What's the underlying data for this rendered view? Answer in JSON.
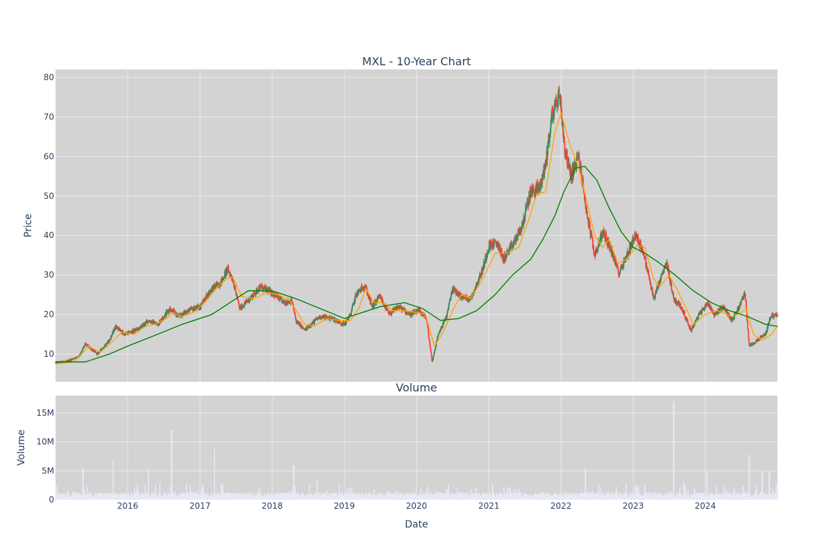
{
  "chart_data": [
    {
      "type": "candlestick",
      "title": "MXL - 10-Year Chart",
      "ylabel": "Price",
      "xlabel": "",
      "ylim": [
        3,
        82
      ],
      "xlim": [
        "2015-01-01",
        "2024-12-31"
      ],
      "yticks": [
        10,
        20,
        30,
        40,
        50,
        60,
        70,
        80
      ],
      "grid": true,
      "colors": {
        "increasing": "#2e8b57",
        "decreasing": "#ff4136",
        "ma_short": "#ffa500",
        "ma_long": "#008000",
        "plot_bg": "#d3d3d3"
      },
      "price_path": [
        [
          "2015-01-01",
          7.8
        ],
        [
          "2015-03-01",
          8.2
        ],
        [
          "2015-05-01",
          9.5
        ],
        [
          "2015-06-01",
          12.5
        ],
        [
          "2015-08-01",
          10.0
        ],
        [
          "2015-10-01",
          13.5
        ],
        [
          "2015-11-01",
          17.0
        ],
        [
          "2015-12-15",
          15.0
        ],
        [
          "2016-01-15",
          15.5
        ],
        [
          "2016-03-01",
          16.5
        ],
        [
          "2016-04-15",
          18.5
        ],
        [
          "2016-06-01",
          17.5
        ],
        [
          "2016-07-01",
          19.5
        ],
        [
          "2016-08-01",
          21.5
        ],
        [
          "2016-09-15",
          19.5
        ],
        [
          "2016-11-01",
          21.0
        ],
        [
          "2017-01-01",
          22.0
        ],
        [
          "2017-03-01",
          26.5
        ],
        [
          "2017-04-15",
          28.0
        ],
        [
          "2017-05-20",
          31.5
        ],
        [
          "2017-06-15",
          29.0
        ],
        [
          "2017-07-20",
          21.5
        ],
        [
          "2017-09-01",
          23.5
        ],
        [
          "2017-11-01",
          27.0
        ],
        [
          "2018-01-01",
          25.5
        ],
        [
          "2018-03-01",
          23.0
        ],
        [
          "2018-04-10",
          23.5
        ],
        [
          "2018-05-01",
          18.5
        ],
        [
          "2018-06-15",
          16.0
        ],
        [
          "2018-07-15",
          17.5
        ],
        [
          "2018-09-01",
          19.5
        ],
        [
          "2018-11-01",
          19.0
        ],
        [
          "2019-01-01",
          17.5
        ],
        [
          "2019-02-01",
          20.0
        ],
        [
          "2019-03-01",
          25.0
        ],
        [
          "2019-04-15",
          27.5
        ],
        [
          "2019-05-20",
          22.0
        ],
        [
          "2019-07-01",
          24.5
        ],
        [
          "2019-08-15",
          20.0
        ],
        [
          "2019-10-01",
          22.0
        ],
        [
          "2019-12-01",
          20.0
        ],
        [
          "2020-01-15",
          21.0
        ],
        [
          "2020-02-20",
          19.0
        ],
        [
          "2020-03-20",
          8.0
        ],
        [
          "2020-04-20",
          15.0
        ],
        [
          "2020-06-01",
          19.5
        ],
        [
          "2020-07-01",
          26.5
        ],
        [
          "2020-08-15",
          24.5
        ],
        [
          "2020-10-01",
          24.0
        ],
        [
          "2020-12-01",
          31.5
        ],
        [
          "2021-01-01",
          37.5
        ],
        [
          "2021-02-15",
          38.0
        ],
        [
          "2021-03-15",
          34.0
        ],
        [
          "2021-05-01",
          37.5
        ],
        [
          "2021-06-15",
          42.0
        ],
        [
          "2021-08-01",
          51.0
        ],
        [
          "2021-09-15",
          52.0
        ],
        [
          "2021-10-15",
          58.0
        ],
        [
          "2021-11-15",
          70.0
        ],
        [
          "2021-12-25",
          76.0
        ],
        [
          "2022-01-20",
          62.0
        ],
        [
          "2022-02-20",
          55.0
        ],
        [
          "2022-04-01",
          60.0
        ],
        [
          "2022-05-10",
          46.0
        ],
        [
          "2022-06-20",
          35.0
        ],
        [
          "2022-08-01",
          41.0
        ],
        [
          "2022-09-15",
          36.0
        ],
        [
          "2022-10-20",
          30.5
        ],
        [
          "2022-12-01",
          35.0
        ],
        [
          "2023-01-10",
          40.0
        ],
        [
          "2023-02-15",
          37.0
        ],
        [
          "2023-03-15",
          31.0
        ],
        [
          "2023-04-15",
          24.0
        ],
        [
          "2023-05-20",
          29.0
        ],
        [
          "2023-06-20",
          33.0
        ],
        [
          "2023-07-25",
          24.0
        ],
        [
          "2023-09-01",
          22.0
        ],
        [
          "2023-10-20",
          16.0
        ],
        [
          "2023-12-01",
          20.0
        ],
        [
          "2024-01-15",
          23.0
        ],
        [
          "2024-02-15",
          20.0
        ],
        [
          "2024-04-01",
          22.0
        ],
        [
          "2024-05-15",
          18.5
        ],
        [
          "2024-06-20",
          22.0
        ],
        [
          "2024-07-20",
          25.5
        ],
        [
          "2024-08-10",
          12.0
        ],
        [
          "2024-09-20",
          13.5
        ],
        [
          "2024-11-01",
          15.0
        ],
        [
          "2024-11-25",
          19.5
        ],
        [
          "2024-12-31",
          20.0
        ]
      ],
      "series": [
        {
          "values": [
            [
              "2015-01-01",
              7.5
            ],
            [
              "2015-04-01",
              8.0
            ],
            [
              "2015-05-15",
              10.0
            ],
            [
              "2015-06-15",
              12.0
            ],
            [
              "2015-08-15",
              10.5
            ],
            [
              "2015-10-01",
              12.5
            ],
            [
              "2015-12-01",
              15.5
            ],
            [
              "2016-02-01",
              15.0
            ],
            [
              "2016-04-01",
              17.0
            ],
            [
              "2016-05-15",
              17.5
            ],
            [
              "2016-07-15",
              19.0
            ],
            [
              "2016-08-15",
              20.5
            ],
            [
              "2016-10-01",
              19.5
            ],
            [
              "2016-12-01",
              20.5
            ],
            [
              "2017-02-01",
              23.5
            ],
            [
              "2017-04-01",
              27.0
            ],
            [
              "2017-05-15",
              29.0
            ],
            [
              "2017-06-15",
              29.5
            ],
            [
              "2017-08-01",
              24.5
            ],
            [
              "2017-10-01",
              24.0
            ],
            [
              "2017-12-01",
              25.5
            ],
            [
              "2018-02-01",
              25.0
            ],
            [
              "2018-04-01",
              23.5
            ],
            [
              "2018-06-15",
              17.5
            ],
            [
              "2018-08-01",
              17.0
            ],
            [
              "2018-10-01",
              19.0
            ],
            [
              "2018-12-01",
              18.5
            ],
            [
              "2019-02-01",
              18.5
            ],
            [
              "2019-03-15",
              21.5
            ],
            [
              "2019-04-20",
              26.5
            ],
            [
              "2019-06-01",
              23.0
            ],
            [
              "2019-07-15",
              23.0
            ],
            [
              "2019-09-01",
              21.0
            ],
            [
              "2019-11-01",
              21.0
            ],
            [
              "2020-01-01",
              20.5
            ],
            [
              "2020-02-15",
              20.0
            ],
            [
              "2020-04-01",
              12.0
            ],
            [
              "2020-05-15",
              15.5
            ],
            [
              "2020-07-01",
              21.0
            ],
            [
              "2020-08-15",
              25.0
            ],
            [
              "2020-10-01",
              24.0
            ],
            [
              "2020-12-01",
              29.0
            ],
            [
              "2021-02-01",
              35.5
            ],
            [
              "2021-04-01",
              35.5
            ],
            [
              "2021-06-01",
              37.0
            ],
            [
              "2021-07-15",
              43.0
            ],
            [
              "2021-09-01",
              50.5
            ],
            [
              "2021-10-15",
              51.0
            ],
            [
              "2021-12-01",
              66.0
            ],
            [
              "2022-01-01",
              71.0
            ],
            [
              "2022-02-15",
              63.0
            ],
            [
              "2022-04-01",
              57.0
            ],
            [
              "2022-05-15",
              48.0
            ],
            [
              "2022-06-20",
              40.0
            ],
            [
              "2022-08-01",
              37.0
            ],
            [
              "2022-09-01",
              39.0
            ],
            [
              "2022-10-15",
              33.0
            ],
            [
              "2022-12-01",
              34.0
            ],
            [
              "2023-01-20",
              37.5
            ],
            [
              "2023-03-01",
              37.0
            ],
            [
              "2023-04-15",
              29.0
            ],
            [
              "2023-05-15",
              27.0
            ],
            [
              "2023-07-01",
              30.0
            ],
            [
              "2023-08-15",
              26.0
            ],
            [
              "2023-10-01",
              21.0
            ],
            [
              "2023-11-01",
              17.5
            ],
            [
              "2024-01-01",
              20.0
            ],
            [
              "2024-03-01",
              21.0
            ],
            [
              "2024-05-15",
              19.5
            ],
            [
              "2024-07-01",
              20.5
            ],
            [
              "2024-07-25",
              21.5
            ],
            [
              "2024-09-01",
              15.0
            ],
            [
              "2024-10-15",
              13.5
            ],
            [
              "2024-12-01",
              15.0
            ],
            [
              "2024-12-31",
              17.0
            ]
          ]
        },
        {
          "values": [
            [
              "2015-01-01",
              8.0
            ],
            [
              "2015-06-01",
              8.0
            ],
            [
              "2015-10-01",
              10.0
            ],
            [
              "2016-01-01",
              12.0
            ],
            [
              "2016-06-01",
              15.0
            ],
            [
              "2016-10-01",
              17.5
            ],
            [
              "2017-03-01",
              20.0
            ],
            [
              "2017-06-01",
              23.0
            ],
            [
              "2017-09-01",
              26.0
            ],
            [
              "2018-01-01",
              26.0
            ],
            [
              "2018-05-01",
              24.0
            ],
            [
              "2018-09-01",
              21.5
            ],
            [
              "2019-01-01",
              19.0
            ],
            [
              "2019-04-01",
              20.5
            ],
            [
              "2019-07-01",
              22.0
            ],
            [
              "2019-11-01",
              23.0
            ],
            [
              "2020-02-01",
              21.5
            ],
            [
              "2020-05-01",
              18.5
            ],
            [
              "2020-08-01",
              19.0
            ],
            [
              "2020-11-01",
              21.0
            ],
            [
              "2021-02-01",
              25.0
            ],
            [
              "2021-05-01",
              30.0
            ],
            [
              "2021-08-01",
              34.0
            ],
            [
              "2021-10-01",
              39.0
            ],
            [
              "2021-12-01",
              45.0
            ],
            [
              "2022-01-15",
              51.0
            ],
            [
              "2022-03-15",
              57.0
            ],
            [
              "2022-05-01",
              57.5
            ],
            [
              "2022-07-01",
              54.0
            ],
            [
              "2022-09-01",
              47.0
            ],
            [
              "2022-11-01",
              41.0
            ],
            [
              "2023-01-01",
              37.0
            ],
            [
              "2023-03-01",
              35.5
            ],
            [
              "2023-05-01",
              33.5
            ],
            [
              "2023-08-01",
              30.0
            ],
            [
              "2023-11-01",
              26.0
            ],
            [
              "2024-02-01",
              23.0
            ],
            [
              "2024-05-01",
              21.0
            ],
            [
              "2024-08-01",
              19.5
            ],
            [
              "2024-11-01",
              17.5
            ],
            [
              "2024-12-31",
              17.0
            ]
          ]
        }
      ]
    },
    {
      "type": "bar",
      "title": "Volume",
      "xlabel": "Date",
      "ylabel": "Volume",
      "ylim": [
        0,
        18000000
      ],
      "yticks": [
        0,
        5000000,
        10000000,
        15000000
      ],
      "ytick_labels": [
        "0",
        "5M",
        "10M",
        "15M"
      ],
      "xtick_labels": [
        "2016",
        "2017",
        "2018",
        "2019",
        "2020",
        "2021",
        "2022",
        "2023",
        "2024"
      ],
      "grid": true,
      "colors": {
        "bar": "#e8e8f6"
      },
      "spikes": [
        [
          "2015-05-20",
          5600000
        ],
        [
          "2015-10-20",
          6700000
        ],
        [
          "2016-02-20",
          2600000
        ],
        [
          "2016-04-15",
          5400000
        ],
        [
          "2016-08-10",
          12000000
        ],
        [
          "2017-01-15",
          2500000
        ],
        [
          "2017-03-15",
          8900000
        ],
        [
          "2018-04-20",
          6000000
        ],
        [
          "2018-08-15",
          3600000
        ],
        [
          "2020-06-10",
          2600000
        ],
        [
          "2021-01-20",
          2700000
        ],
        [
          "2022-05-05",
          5400000
        ],
        [
          "2023-03-01",
          2500000
        ],
        [
          "2023-07-25",
          17000000
        ],
        [
          "2023-09-15",
          3000000
        ],
        [
          "2024-01-10",
          5000000
        ],
        [
          "2024-08-10",
          7800000
        ],
        [
          "2024-10-15",
          5000000
        ],
        [
          "2024-11-20",
          5000000
        ]
      ]
    }
  ]
}
